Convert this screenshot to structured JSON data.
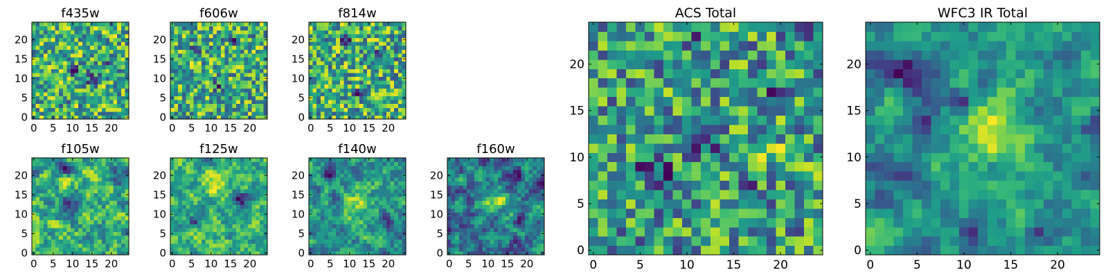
{
  "chart_data": [
    {
      "type": "heatmap",
      "title": "f435w",
      "xlim": [
        0,
        24
      ],
      "ylim": [
        0,
        24
      ],
      "rows": 25,
      "cols": 25,
      "xticks": [
        0,
        5,
        10,
        15,
        20
      ],
      "yticks": [
        0,
        5,
        10,
        15,
        20
      ],
      "colormap": "viridis",
      "vrange": [
        0,
        1
      ],
      "values": "pixel noise (25×25)",
      "seed": 101,
      "smoothing": 0,
      "blobs": [
        [
          10,
          12,
          -0.5,
          1.2
        ],
        [
          15,
          10,
          -0.5,
          1.2
        ],
        [
          8,
          4,
          -0.4,
          1.0
        ],
        [
          20,
          14,
          -0.4,
          1.0
        ]
      ]
    },
    {
      "type": "heatmap",
      "title": "f606w",
      "xlim": [
        0,
        24
      ],
      "ylim": [
        0,
        24
      ],
      "rows": 25,
      "cols": 25,
      "xticks": [
        0,
        5,
        10,
        15,
        20
      ],
      "yticks": [
        0,
        5,
        10,
        15,
        20
      ],
      "colormap": "viridis",
      "vrange": [
        0,
        1
      ],
      "values": "pixel noise (25×25)",
      "seed": 202,
      "smoothing": 0,
      "blobs": [
        [
          16,
          20,
          -0.5,
          1.0
        ],
        [
          6,
          18,
          -0.4,
          1.0
        ],
        [
          12,
          8,
          -0.4,
          1.0
        ]
      ]
    },
    {
      "type": "heatmap",
      "title": "f814w",
      "xlim": [
        0,
        24
      ],
      "ylim": [
        0,
        24
      ],
      "rows": 25,
      "cols": 25,
      "xticks": [
        0,
        5,
        10,
        15,
        20
      ],
      "yticks": [
        0,
        5,
        10,
        15,
        20
      ],
      "colormap": "viridis",
      "vrange": [
        0,
        1
      ],
      "values": "pixel noise (25×25)",
      "seed": 303,
      "smoothing": 0,
      "blobs": [
        [
          9,
          20,
          -0.6,
          1.0
        ],
        [
          17,
          16,
          -0.4,
          1.0
        ],
        [
          12,
          6,
          -0.4,
          1.0
        ]
      ]
    },
    {
      "type": "heatmap",
      "title": "f105w",
      "xlim": [
        0,
        24
      ],
      "ylim": [
        0,
        24
      ],
      "rows": 25,
      "cols": 25,
      "xticks": [
        0,
        5,
        10,
        15,
        20
      ],
      "yticks": [
        0,
        5,
        10,
        15,
        20
      ],
      "colormap": "viridis",
      "vrange": [
        0,
        1
      ],
      "values": "pixel noise (25×25)",
      "seed": 404,
      "smoothing": 1,
      "blobs": [
        [
          9,
          12,
          -0.4,
          2.0
        ],
        [
          8,
          22,
          -0.4,
          1.2
        ],
        [
          22,
          20,
          -0.3,
          1.5
        ]
      ]
    },
    {
      "type": "heatmap",
      "title": "f125w",
      "xlim": [
        0,
        24
      ],
      "ylim": [
        0,
        24
      ],
      "rows": 25,
      "cols": 25,
      "xticks": [
        0,
        5,
        10,
        15,
        20
      ],
      "yticks": [
        0,
        5,
        10,
        15,
        20
      ],
      "colormap": "viridis",
      "vrange": [
        0,
        1
      ],
      "values": "pixel noise (25×25)",
      "seed": 505,
      "smoothing": 1,
      "blobs": [
        [
          18,
          14,
          -0.5,
          1.5
        ],
        [
          6,
          8,
          -0.4,
          1.2
        ],
        [
          12,
          18,
          0.3,
          2.0
        ]
      ]
    },
    {
      "type": "heatmap",
      "title": "f140w",
      "xlim": [
        0,
        24
      ],
      "ylim": [
        0,
        24
      ],
      "rows": 25,
      "cols": 25,
      "xticks": [
        0,
        5,
        10,
        15,
        20
      ],
      "yticks": [
        0,
        5,
        10,
        15,
        20
      ],
      "colormap": "viridis",
      "vrange": [
        0,
        1
      ],
      "values": "pixel noise (25×25)",
      "seed": 606,
      "smoothing": 1,
      "blobs": [
        [
          12,
          12,
          0.3,
          3.0
        ],
        [
          5,
          20,
          -0.4,
          1.2
        ],
        [
          20,
          8,
          -0.4,
          1.2
        ]
      ]
    },
    {
      "type": "heatmap",
      "title": "f160w",
      "xlim": [
        0,
        24
      ],
      "ylim": [
        0,
        24
      ],
      "rows": 25,
      "cols": 25,
      "xticks": [
        0,
        5,
        10,
        15,
        20
      ],
      "yticks": [
        0,
        5,
        10,
        15,
        20
      ],
      "colormap": "viridis",
      "vrange": [
        0,
        1
      ],
      "values": "pixel noise (25×25)",
      "seed": 707,
      "smoothing": 1,
      "blobs": [
        [
          0,
          6,
          -0.5,
          1.2
        ],
        [
          12,
          14,
          0.3,
          2.5
        ],
        [
          18,
          20,
          -0.3,
          1.2
        ]
      ]
    },
    {
      "type": "heatmap",
      "title": "ACS Total",
      "xlim": [
        0,
        24
      ],
      "ylim": [
        0,
        24
      ],
      "rows": 25,
      "cols": 25,
      "xticks": [
        0,
        5,
        10,
        15,
        20
      ],
      "yticks": [
        0,
        5,
        10,
        15,
        20
      ],
      "colormap": "viridis",
      "vrange": [
        0,
        1
      ],
      "values": "pixel noise (25×25)",
      "seed": 808,
      "smoothing": 0,
      "blobs": [
        [
          4,
          0,
          -0.6,
          0.8
        ],
        [
          8,
          8,
          -0.6,
          0.8
        ],
        [
          6,
          9,
          -0.5,
          0.8
        ],
        [
          12,
          11,
          -0.5,
          0.8
        ],
        [
          20,
          17,
          -0.6,
          0.8
        ],
        [
          16,
          7,
          -0.5,
          0.8
        ],
        [
          22,
          24,
          -0.5,
          0.8
        ],
        [
          11,
          23,
          -0.5,
          0.8
        ],
        [
          20,
          10,
          0.4,
          1.2
        ]
      ]
    },
    {
      "type": "heatmap",
      "title": "WFC3 IR Total",
      "xlim": [
        0,
        24
      ],
      "ylim": [
        0,
        24
      ],
      "rows": 25,
      "cols": 25,
      "xticks": [
        0,
        5,
        10,
        15,
        20
      ],
      "yticks": [
        0,
        5,
        10,
        15,
        20
      ],
      "colormap": "viridis",
      "vrange": [
        0,
        1
      ],
      "values": "pixel noise (25×25)",
      "seed": 909,
      "smoothing": 1,
      "blobs": [
        [
          13,
          13,
          0.55,
          2.2
        ],
        [
          4,
          19,
          -0.6,
          1.2
        ],
        [
          6,
          14,
          -0.5,
          1.0
        ],
        [
          4,
          8,
          -0.5,
          1.0
        ],
        [
          1,
          5,
          -0.5,
          0.9
        ],
        [
          11,
          2,
          -0.5,
          0.8
        ],
        [
          18,
          2,
          -0.4,
          0.9
        ],
        [
          10,
          16,
          -0.4,
          1.0
        ],
        [
          24,
          13,
          -0.4,
          1.0
        ],
        [
          0,
          21,
          -0.3,
          1.0
        ]
      ]
    }
  ]
}
